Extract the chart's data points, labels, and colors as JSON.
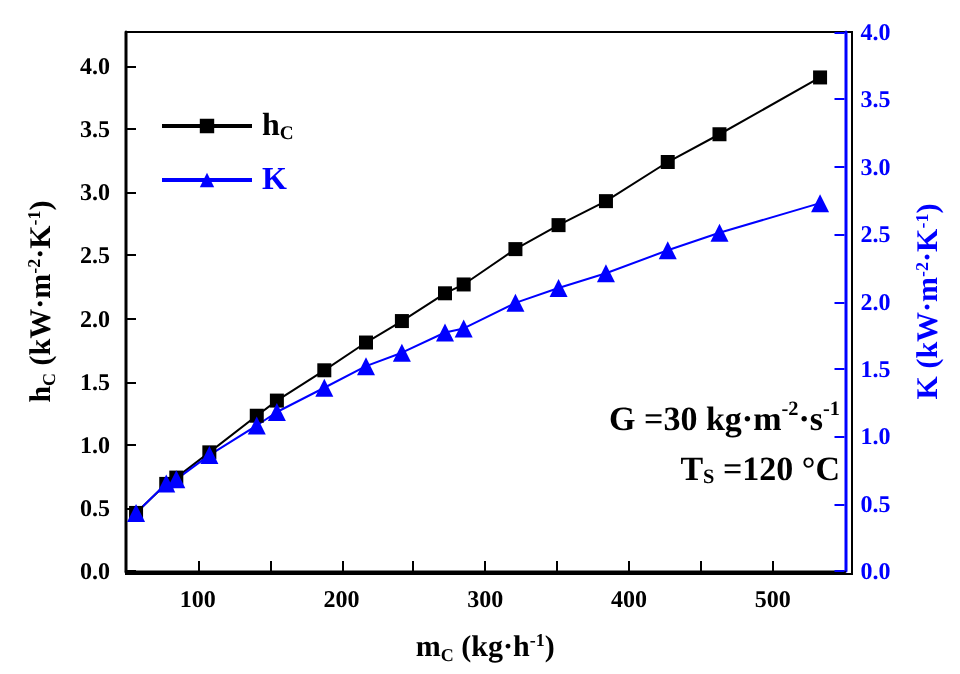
{
  "chart_data": {
    "type": "line",
    "xlabel": "m$_{C}$ (kg·h$^{-1}$)",
    "ylabel": "h$_{C}$ (kW·m$^{-2}$·K$^{-1}$)",
    "y2label": "K (kW·m$^{-2}$·K$^{-1}$)",
    "x": [
      57,
      78,
      85,
      108,
      141,
      155,
      188,
      217,
      242,
      272,
      285,
      321,
      351,
      384,
      427,
      463,
      533
    ],
    "series": [
      {
        "name": "h$_{C}$",
        "color": "#000000",
        "marker": "square",
        "values": [
          0.46,
          0.69,
          0.74,
          0.94,
          1.23,
          1.35,
          1.59,
          1.81,
          1.98,
          2.2,
          2.27,
          2.55,
          2.74,
          2.93,
          3.24,
          3.46,
          3.91
        ]
      },
      {
        "name": "K",
        "color": "#0000ff",
        "marker": "triangle",
        "axis": "y2",
        "values": [
          0.43,
          0.65,
          0.68,
          0.86,
          1.08,
          1.18,
          1.36,
          1.52,
          1.62,
          1.77,
          1.8,
          1.99,
          2.1,
          2.21,
          2.38,
          2.51,
          2.73
        ]
      }
    ],
    "xlim": [
      50,
      550
    ],
    "xticks": [
      100,
      {
        "value": 150,
        "label": null
      },
      200,
      {
        "value": 250,
        "label": null
      },
      300,
      {
        "value": 350,
        "label": null
      },
      400,
      {
        "value": 450,
        "label": null
      },
      500
    ],
    "ylim": [
      0,
      4.27
    ],
    "yticks": [
      {
        "value": 0,
        "label": "0.0"
      },
      0.5,
      {
        "value": 1,
        "label": "1.0"
      },
      1.5,
      {
        "value": 2,
        "label": "2.0"
      },
      2.5,
      {
        "value": 3,
        "label": "3.0"
      },
      3.5,
      {
        "value": 4,
        "label": "4.0"
      }
    ],
    "y2lim": [
      0,
      4
    ],
    "y2ticks": [
      {
        "value": 0,
        "label": "0.0"
      },
      0.5,
      {
        "value": 1,
        "label": "1.0"
      },
      1.5,
      {
        "value": 2,
        "label": "2.0"
      },
      2.5,
      {
        "value": 3,
        "label": "3.0"
      },
      3.5,
      {
        "value": 4,
        "label": "4.0"
      }
    ],
    "annotations": [
      "G =30 kg·m$^{-2}$·s$^{-1}$",
      "T$_{S}$ =120 °C"
    ],
    "legend": "top left",
    "grid": false
  }
}
